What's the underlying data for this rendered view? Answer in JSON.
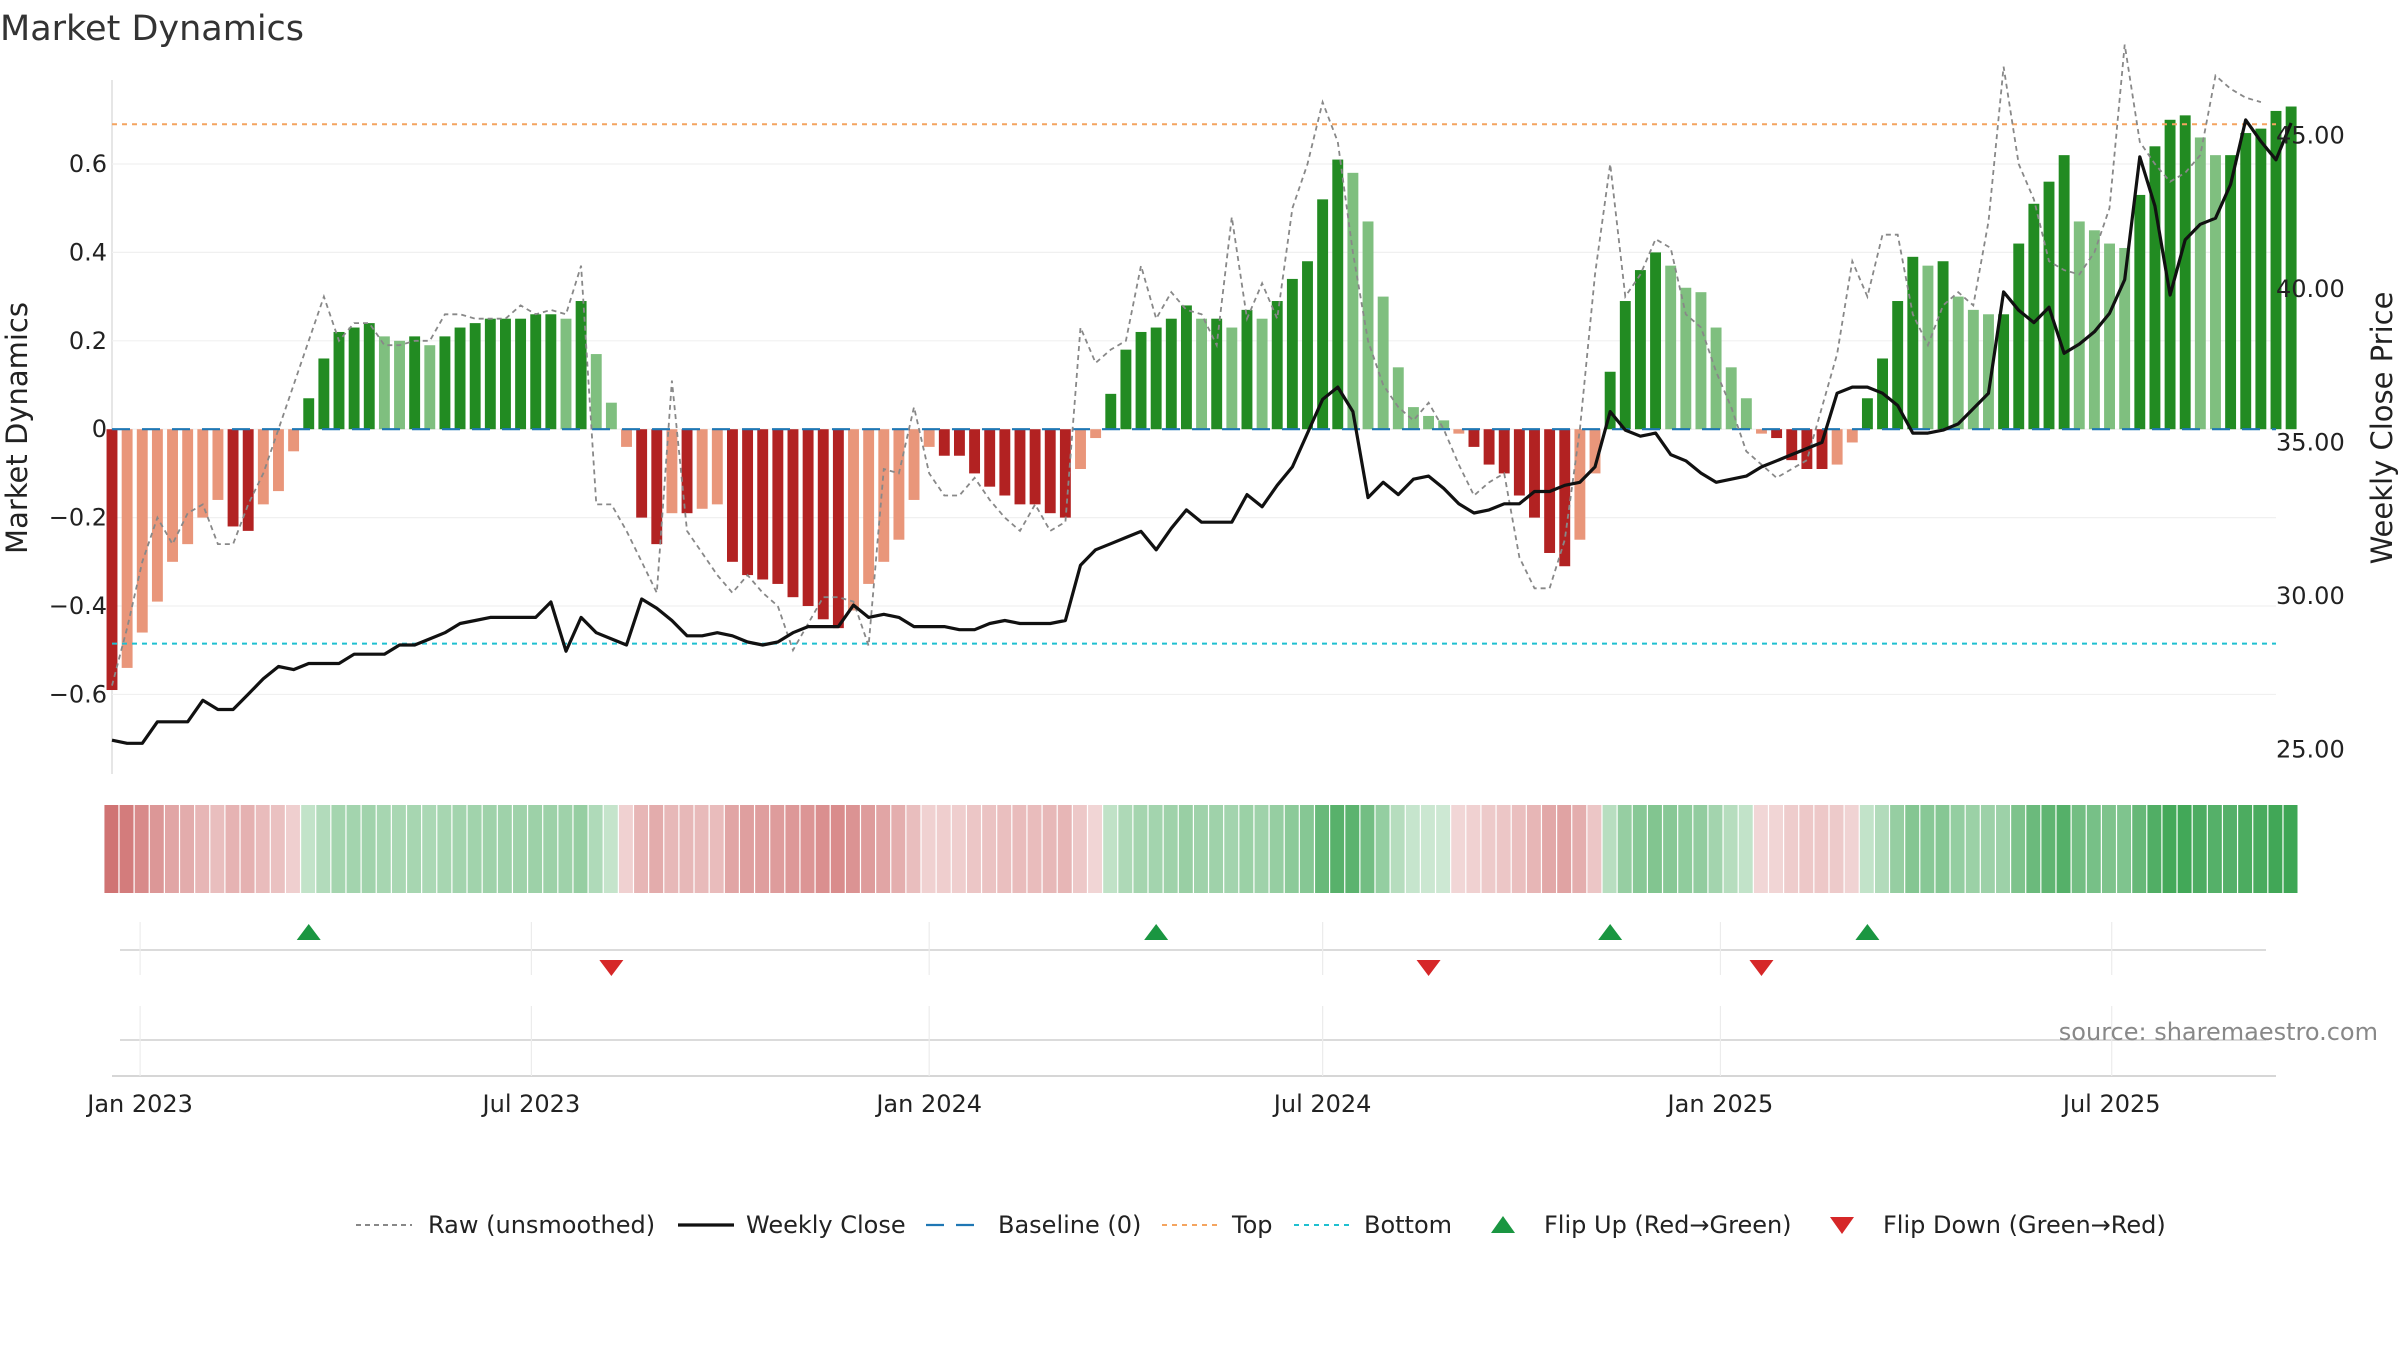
{
  "title": "Market Dynamics",
  "source_text": "source: sharemaestro.com",
  "colors": {
    "strong_green": "#228b22",
    "light_green": "#7fbf7f",
    "strong_red": "#b22222",
    "light_red": "#e9967a",
    "raw_line": "#888888",
    "close_line": "#111111",
    "baseline": "#1f77b4",
    "top_line": "#f4a460",
    "bottom_line": "#20c0d0",
    "flip_up": "#1a9641",
    "flip_down": "#d62728"
  },
  "chart_data": {
    "type": "bar",
    "title": "Market Dynamics",
    "ylabel_left": "Market Dynamics",
    "ylabel_right": "Weekly Close Price",
    "x_range": [
      "2022-12-19",
      "2025-09-15"
    ],
    "y_left": {
      "range": [
        -0.78,
        0.79
      ],
      "ticks": [
        -0.6,
        -0.4,
        -0.2,
        0,
        0.2,
        0.4,
        0.6
      ],
      "tick_labels": [
        "−0.6",
        "−0.4",
        "−0.2",
        "0",
        "0.2",
        "0.4",
        "0.6"
      ]
    },
    "y_right": {
      "range": [
        24.2,
        46.8
      ],
      "ticks": [
        25,
        30,
        35,
        40,
        45
      ],
      "tick_labels": [
        "25.00",
        "30.00",
        "35.00",
        "40.00",
        "45.00"
      ]
    },
    "x_ticks": [
      {
        "date": "2023-01-01",
        "label": "Jan 2023"
      },
      {
        "date": "2023-07-01",
        "label": "Jul 2023"
      },
      {
        "date": "2024-01-01",
        "label": "Jan 2024"
      },
      {
        "date": "2024-07-01",
        "label": "Jul 2024"
      },
      {
        "date": "2025-01-01",
        "label": "Jan 2025"
      },
      {
        "date": "2025-07-01",
        "label": "Jul 2025"
      }
    ],
    "start_date": "2022-12-19",
    "period_days": 7,
    "smoothed": [
      -0.59,
      -0.54,
      -0.46,
      -0.39,
      -0.3,
      -0.26,
      -0.2,
      -0.16,
      -0.22,
      -0.23,
      -0.17,
      -0.14,
      -0.05,
      0.07,
      0.16,
      0.22,
      0.23,
      0.24,
      0.21,
      0.2,
      0.21,
      0.19,
      0.21,
      0.23,
      0.24,
      0.25,
      0.25,
      0.25,
      0.26,
      0.26,
      0.25,
      0.29,
      0.17,
      0.06,
      -0.04,
      -0.2,
      -0.26,
      -0.19,
      -0.19,
      -0.18,
      -0.17,
      -0.3,
      -0.33,
      -0.34,
      -0.35,
      -0.38,
      -0.4,
      -0.43,
      -0.45,
      -0.41,
      -0.35,
      -0.3,
      -0.25,
      -0.16,
      -0.04,
      -0.06,
      -0.06,
      -0.1,
      -0.13,
      -0.15,
      -0.17,
      -0.17,
      -0.19,
      -0.2,
      -0.09,
      -0.02,
      0.08,
      0.18,
      0.22,
      0.23,
      0.25,
      0.28,
      0.25,
      0.25,
      0.23,
      0.27,
      0.25,
      0.29,
      0.34,
      0.38,
      0.52,
      0.61,
      0.58,
      0.47,
      0.3,
      0.14,
      0.05,
      0.03,
      0.02,
      -0.01,
      -0.04,
      -0.08,
      -0.1,
      -0.15,
      -0.2,
      -0.28,
      -0.31,
      -0.25,
      -0.1,
      0.13,
      0.29,
      0.36,
      0.4,
      0.37,
      0.32,
      0.31,
      0.23,
      0.14,
      0.07,
      -0.01,
      -0.02,
      -0.07,
      -0.09,
      -0.09,
      -0.08,
      -0.03,
      0.07,
      0.16,
      0.29,
      0.39,
      0.37,
      0.38,
      0.3,
      0.27,
      0.26,
      0.26,
      0.42,
      0.51,
      0.56,
      0.62,
      0.47,
      0.45,
      0.42,
      0.41,
      0.53,
      0.64,
      0.7,
      0.71,
      0.66,
      0.62,
      0.62,
      0.67,
      0.68,
      0.72,
      0.73
    ],
    "raw": [
      -0.58,
      -0.45,
      -0.3,
      -0.2,
      -0.26,
      -0.19,
      -0.17,
      -0.26,
      -0.26,
      -0.17,
      -0.1,
      0.0,
      0.1,
      0.2,
      0.3,
      0.2,
      0.24,
      0.24,
      0.19,
      0.19,
      0.2,
      0.2,
      0.26,
      0.26,
      0.25,
      0.25,
      0.25,
      0.28,
      0.26,
      0.27,
      0.26,
      0.37,
      -0.17,
      -0.17,
      -0.23,
      -0.3,
      -0.37,
      0.11,
      -0.23,
      -0.28,
      -0.33,
      -0.37,
      -0.33,
      -0.37,
      -0.4,
      -0.5,
      -0.44,
      -0.38,
      -0.38,
      -0.39,
      -0.49,
      -0.09,
      -0.1,
      0.05,
      -0.1,
      -0.15,
      -0.15,
      -0.11,
      -0.16,
      -0.2,
      -0.23,
      -0.17,
      -0.23,
      -0.21,
      0.23,
      0.15,
      0.18,
      0.2,
      0.37,
      0.25,
      0.31,
      0.27,
      0.26,
      0.19,
      0.48,
      0.25,
      0.33,
      0.25,
      0.5,
      0.6,
      0.74,
      0.65,
      0.4,
      0.2,
      0.1,
      0.05,
      0.02,
      0.06,
      0.0,
      -0.08,
      -0.15,
      -0.12,
      -0.1,
      -0.29,
      -0.36,
      -0.36,
      -0.25,
      0.0,
      0.35,
      0.6,
      0.3,
      0.35,
      0.43,
      0.41,
      0.26,
      0.23,
      0.13,
      0.05,
      -0.05,
      -0.08,
      -0.11,
      -0.09,
      -0.07,
      0.05,
      0.17,
      0.38,
      0.3,
      0.44,
      0.44,
      0.26,
      0.19,
      0.28,
      0.31,
      0.28,
      0.47,
      0.82,
      0.6,
      0.52,
      0.38,
      0.36,
      0.35,
      0.4,
      0.5,
      0.87,
      0.65,
      0.6,
      0.56,
      0.58,
      0.62,
      0.8,
      0.77,
      0.75,
      0.74
    ],
    "close": [
      25.3,
      25.2,
      25.2,
      25.9,
      25.9,
      25.9,
      26.6,
      26.3,
      26.3,
      26.8,
      27.3,
      27.7,
      27.6,
      27.8,
      27.8,
      27.8,
      28.1,
      28.1,
      28.1,
      28.4,
      28.4,
      28.6,
      28.8,
      29.1,
      29.2,
      29.3,
      29.3,
      29.3,
      29.3,
      29.8,
      28.2,
      29.3,
      28.8,
      28.6,
      28.4,
      29.9,
      29.6,
      29.2,
      28.7,
      28.7,
      28.8,
      28.7,
      28.5,
      28.4,
      28.5,
      28.8,
      29.0,
      29.0,
      29.0,
      29.7,
      29.3,
      29.4,
      29.3,
      29.0,
      29.0,
      29.0,
      28.9,
      28.9,
      29.1,
      29.2,
      29.1,
      29.1,
      29.1,
      29.2,
      31.0,
      31.5,
      31.7,
      31.9,
      32.1,
      31.5,
      32.2,
      32.8,
      32.4,
      32.4,
      32.4,
      33.3,
      32.9,
      33.6,
      34.2,
      35.3,
      36.4,
      36.8,
      36.0,
      33.2,
      33.7,
      33.3,
      33.8,
      33.9,
      33.5,
      33.0,
      32.7,
      32.8,
      33.0,
      33.0,
      33.4,
      33.4,
      33.6,
      33.7,
      34.2,
      36.0,
      35.4,
      35.2,
      35.3,
      34.6,
      34.4,
      34.0,
      33.7,
      33.8,
      33.9,
      34.2,
      34.4,
      34.6,
      34.8,
      35.0,
      36.6,
      36.8,
      36.8,
      36.6,
      36.2,
      35.3,
      35.3,
      35.4,
      35.6,
      36.1,
      36.6,
      39.9,
      39.3,
      38.9,
      39.4,
      37.9,
      38.2,
      38.6,
      39.2,
      40.3,
      44.3,
      42.7,
      39.8,
      41.6,
      42.1,
      42.3,
      43.4,
      45.5,
      44.8,
      44.2,
      45.4
    ]
  },
  "flips": {
    "up_dates": [
      "2023-03-20",
      "2024-04-15",
      "2024-11-11",
      "2025-03-10"
    ],
    "down_dates": [
      "2023-08-07",
      "2024-08-19",
      "2025-01-20"
    ]
  },
  "legend": [
    {
      "key": "raw",
      "label": "Raw (unsmoothed)"
    },
    {
      "key": "close",
      "label": "Weekly Close"
    },
    {
      "key": "baseline",
      "label": "Baseline (0)"
    },
    {
      "key": "top",
      "label": "Top"
    },
    {
      "key": "bottom",
      "label": "Bottom"
    },
    {
      "key": "flip_up",
      "label": "Flip Up (Red→Green)"
    },
    {
      "key": "flip_down",
      "label": "Flip Down (Green→Red)"
    }
  ],
  "levels": {
    "baseline": 0,
    "top": 0.69,
    "bottom": -0.485
  }
}
